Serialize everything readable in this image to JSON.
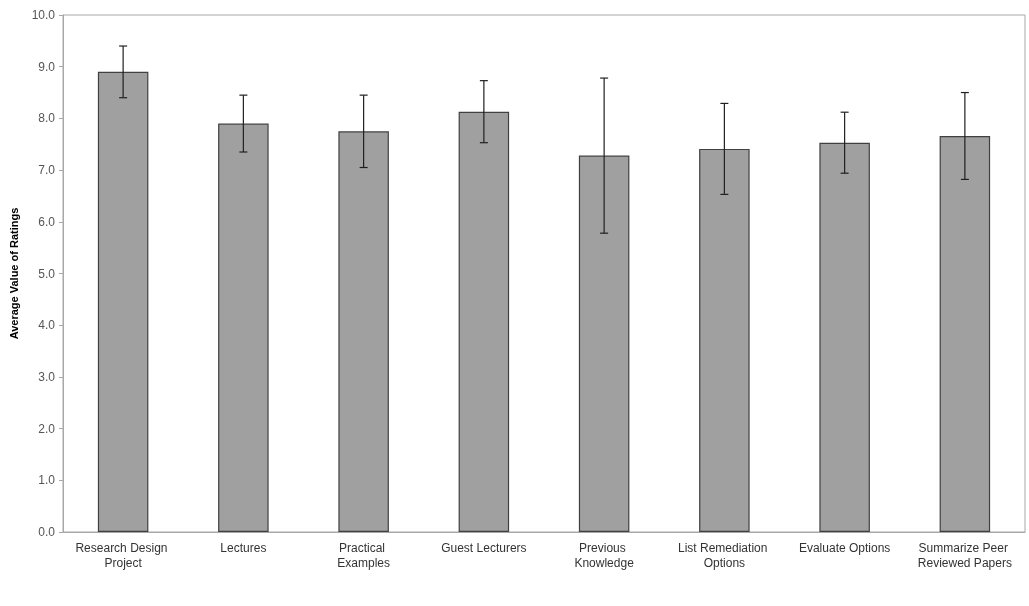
{
  "chart_data": {
    "type": "bar",
    "ylabel": "Average Value of Ratings",
    "categories": [
      "Research Design Project",
      "Lectures",
      "Practical Examples",
      "Guest Lecturers",
      "Previous Knowledge",
      "List Remediation Options",
      "Evaluate Options",
      "Summarize Peer Reviewed Papers"
    ],
    "values": [
      8.9,
      7.9,
      7.75,
      8.13,
      7.28,
      7.41,
      7.53,
      7.66
    ],
    "errors": [
      0.5,
      0.55,
      0.7,
      0.6,
      1.5,
      0.88,
      0.59,
      0.84
    ],
    "color": "#a0a0a0",
    "ylim": [
      0,
      10
    ],
    "yticks": [
      {
        "value": 0,
        "label": "0.0"
      },
      {
        "value": 1,
        "label": "1.0"
      },
      {
        "value": 2,
        "label": "2.0"
      },
      {
        "value": 3,
        "label": "3.0"
      },
      {
        "value": 4,
        "label": "4.0"
      },
      {
        "value": 5,
        "label": "5.0"
      },
      {
        "value": 6,
        "label": "6.0"
      },
      {
        "value": 7,
        "label": "7.0"
      },
      {
        "value": 8,
        "label": "8.0"
      },
      {
        "value": 9,
        "label": "9.0"
      },
      {
        "value": 10,
        "label": "10.0"
      }
    ],
    "grid": false
  }
}
